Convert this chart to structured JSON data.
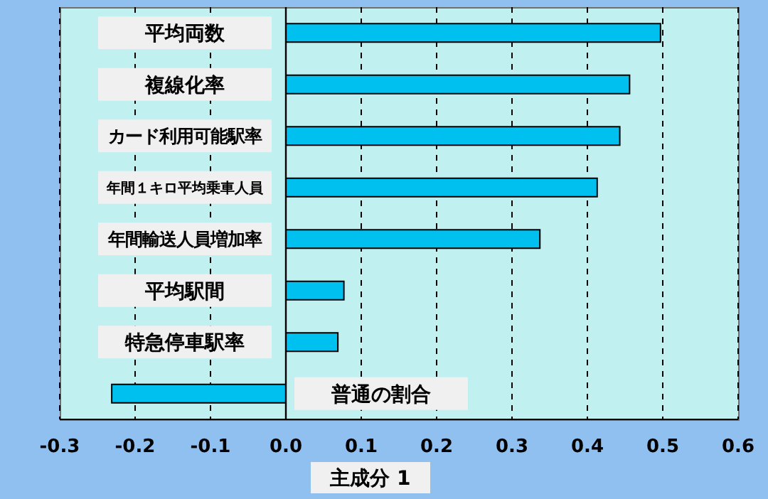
{
  "chart_data": {
    "type": "bar",
    "orientation": "horizontal",
    "xlabel": "主成分 1",
    "categories": [
      "平均両数",
      "複線化率",
      "カード利用可能駅率",
      "年間１キロ平均乗車人員",
      "年間輸送人員増加率",
      "平均駅間",
      "特急停車駅率",
      "普通の割合"
    ],
    "values": [
      0.497,
      0.456,
      0.443,
      0.413,
      0.337,
      0.077,
      0.069,
      -0.231
    ],
    "color": "#00c0f0",
    "xlim": [
      -0.3,
      0.6
    ],
    "xticks": [
      -0.3,
      -0.2,
      -0.1,
      {
        "value": 0,
        "label": "0.0"
      },
      0.1,
      0.2,
      0.3,
      0.4,
      0.5,
      0.6
    ],
    "grid": "x",
    "legend": false
  }
}
